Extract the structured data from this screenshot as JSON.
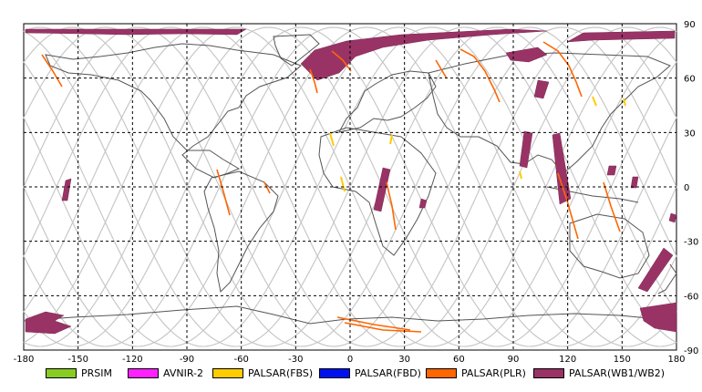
{
  "map": {
    "x_ticks": [
      "-180",
      "-150",
      "-120",
      "-90",
      "-60",
      "-30",
      "0",
      "30",
      "60",
      "90",
      "120",
      "150",
      "180"
    ],
    "y_ticks": [
      "90",
      "60",
      "30",
      "0",
      "-30",
      "-60",
      "-90"
    ],
    "x_range": [
      -180,
      180
    ],
    "y_range": [
      -90,
      90
    ],
    "grid": true
  },
  "legend": [
    {
      "label": "PRSIM",
      "color": "#88cc22"
    },
    {
      "label": "AVNIR-2",
      "color": "#ff22ff"
    },
    {
      "label": "PALSAR(FBS)",
      "color": "#ffcc00"
    },
    {
      "label": "PALSAR(FBD)",
      "color": "#0011ee"
    },
    {
      "label": "PALSAR(PLR)",
      "color": "#ff6600"
    },
    {
      "label": "PALSAR(WB1/WB2)",
      "color": "#993366"
    }
  ]
}
